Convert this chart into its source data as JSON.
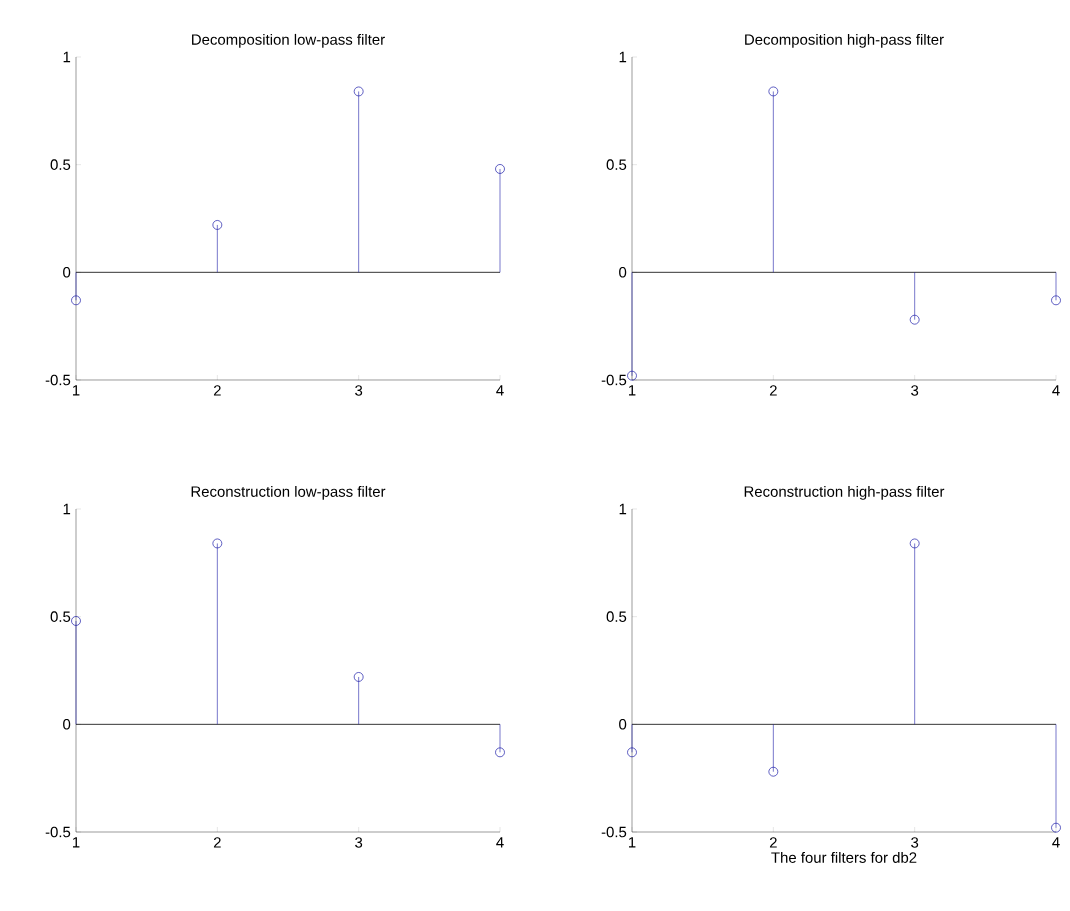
{
  "chart_data": [
    {
      "type": "lollipop",
      "title": "Decomposition low-pass filter",
      "x": [
        1,
        2,
        3,
        4
      ],
      "values": [
        -0.13,
        0.22,
        0.84,
        0.48
      ],
      "color": "#1c1ca8",
      "marker": "circle",
      "xlim": [
        1,
        4
      ],
      "ylim": [
        -0.5,
        1
      ],
      "xticks": [
        1,
        2,
        3,
        4
      ],
      "yticks": [
        -0.5,
        0,
        0.5,
        1
      ],
      "ref_lines": [
        {
          "axis": "y",
          "value": 0,
          "color": "#000000"
        }
      ]
    },
    {
      "type": "lollipop",
      "title": "Decomposition high-pass filter",
      "x": [
        1,
        2,
        3,
        4
      ],
      "values": [
        -0.48,
        0.84,
        -0.22,
        -0.13
      ],
      "color": "#1c1ca8",
      "marker": "circle",
      "xlim": [
        1,
        4
      ],
      "ylim": [
        -0.5,
        1
      ],
      "xticks": [
        1,
        2,
        3,
        4
      ],
      "yticks": [
        -0.5,
        0,
        0.5,
        1
      ],
      "ref_lines": [
        {
          "axis": "y",
          "value": 0,
          "color": "#000000"
        }
      ]
    },
    {
      "type": "lollipop",
      "title": "Reconstruction low-pass filter",
      "x": [
        1,
        2,
        3,
        4
      ],
      "values": [
        0.48,
        0.84,
        0.22,
        -0.13
      ],
      "color": "#1c1ca8",
      "marker": "circle",
      "xlim": [
        1,
        4
      ],
      "ylim": [
        -0.5,
        1
      ],
      "xticks": [
        1,
        2,
        3,
        4
      ],
      "yticks": [
        -0.5,
        0,
        0.5,
        1
      ],
      "ref_lines": [
        {
          "axis": "y",
          "value": 0,
          "color": "#000000"
        }
      ]
    },
    {
      "type": "lollipop",
      "title": "Reconstruction high-pass filter",
      "xlabel": "The four filters for db2",
      "x": [
        1,
        2,
        3,
        4
      ],
      "values": [
        -0.13,
        -0.22,
        0.84,
        -0.48
      ],
      "color": "#1c1ca8",
      "marker": "circle",
      "xlim": [
        1,
        4
      ],
      "ylim": [
        -0.5,
        1
      ],
      "xticks": [
        1,
        2,
        3,
        4
      ],
      "yticks": [
        -0.5,
        0,
        0.5,
        1
      ],
      "ref_lines": [
        {
          "axis": "y",
          "value": 0,
          "color": "#000000"
        }
      ]
    }
  ]
}
